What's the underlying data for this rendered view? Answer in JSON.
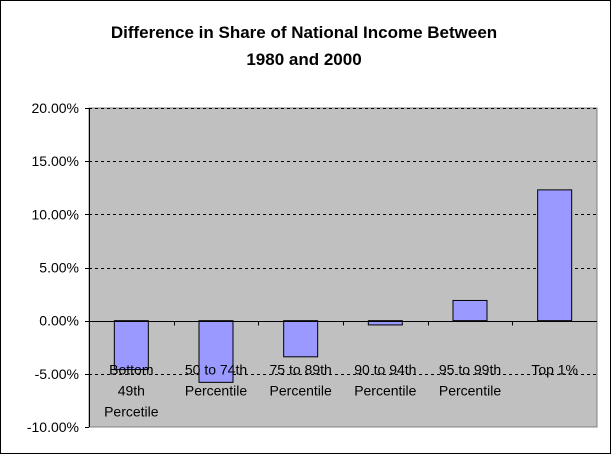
{
  "chart_data": {
    "type": "bar",
    "title_lines": [
      "Difference in Share of National Income Between",
      "1980 and 2000"
    ],
    "categories": [
      [
        "Bottom",
        "49th",
        "Percetile"
      ],
      [
        "50 to 74th",
        "Percentile"
      ],
      [
        "75 to 89th",
        "Percentile"
      ],
      [
        "90 to 94th",
        "Percentile"
      ],
      [
        "95 to 99th",
        "Percentile"
      ],
      [
        "Top 1%"
      ]
    ],
    "values": [
      -4.6,
      -5.8,
      -3.4,
      -0.4,
      1.9,
      12.3
    ],
    "ylim": [
      -10,
      20
    ],
    "ytick_values": [
      -10,
      -5,
      0,
      5,
      10,
      15,
      20
    ],
    "ytick_labels": [
      "-10.00%",
      "-5.00%",
      "0.00%",
      "5.00%",
      "10.00%",
      "15.00%",
      "20.00%"
    ],
    "xlabel": "",
    "ylabel": "",
    "grid": true,
    "legend": "none",
    "colors": {
      "bar_fill": "#9999ff",
      "bar_stroke": "#000000",
      "plot_background": "#c0c0c0",
      "page_background": "#ffffff",
      "gridline": "#000000"
    }
  }
}
